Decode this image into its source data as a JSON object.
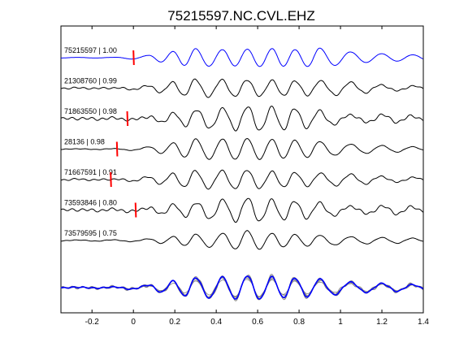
{
  "chart_data": {
    "type": "line",
    "title": "75215597.NC.CVL.EHZ",
    "xlabel": "",
    "ylabel": "",
    "xlim": [
      -0.35,
      1.4
    ],
    "x_ticks": [
      -0.2,
      0,
      0.2,
      0.4,
      0.6,
      0.8,
      1,
      1.2,
      1.4
    ],
    "x_tick_labels": [
      "-0.2",
      "0",
      "0.2",
      "0.4",
      "0.6",
      "0.8",
      "1",
      "1.2",
      "1.4"
    ],
    "grid": false,
    "series": [
      {
        "name": "75215597 | 1.00",
        "label": "75215597 | 1.00",
        "color": "#0000ff",
        "pick_time": 0.0,
        "peak_times": [
          -0.1,
          0.07,
          0.19,
          0.3,
          0.43,
          0.55,
          0.67,
          0.78,
          0.9,
          1.05,
          1.2,
          1.35
        ],
        "peak_amplitudes": [
          0.03,
          0.2,
          0.55,
          0.8,
          0.7,
          0.75,
          0.8,
          0.7,
          0.85,
          0.5,
          0.35,
          0.25
        ]
      },
      {
        "name": "21308760 | 0.99",
        "label": "21308760 | 0.99",
        "color": "#000000",
        "pick_time": null,
        "peak_times": [
          -0.1,
          0.07,
          0.19,
          0.3,
          0.43,
          0.55,
          0.67,
          0.78,
          0.9,
          1.05,
          1.2,
          1.35
        ],
        "peak_amplitudes": [
          0.02,
          0.18,
          0.5,
          0.75,
          0.8,
          0.82,
          0.78,
          0.72,
          0.7,
          0.45,
          0.3,
          0.2
        ]
      },
      {
        "name": "71863550 | 0.98",
        "label": "71863550 | 0.98",
        "color": "#000000",
        "pick_time": -0.03,
        "peak_times": [
          -0.1,
          0.07,
          0.19,
          0.3,
          0.43,
          0.55,
          0.67,
          0.78,
          0.9,
          1.05,
          1.2,
          1.35
        ],
        "peak_amplitudes": [
          0.03,
          0.2,
          0.55,
          0.85,
          0.8,
          0.9,
          0.85,
          0.75,
          0.6,
          0.4,
          0.3,
          0.2
        ]
      },
      {
        "name": "28136 | 0.98",
        "label": "28136 | 0.98",
        "color": "#000000",
        "pick_time": -0.08,
        "peak_times": [
          -0.1,
          0.07,
          0.19,
          0.3,
          0.43,
          0.55,
          0.67,
          0.78,
          0.9,
          1.05,
          1.2,
          1.35
        ],
        "peak_amplitudes": [
          0.03,
          0.2,
          0.55,
          0.9,
          0.85,
          0.9,
          0.82,
          0.75,
          0.65,
          0.45,
          0.3,
          0.2
        ]
      },
      {
        "name": "71667591 | 0.91",
        "label": "71667591 | 0.91",
        "color": "#000000",
        "pick_time": -0.11,
        "peak_times": [
          -0.1,
          0.07,
          0.19,
          0.3,
          0.43,
          0.55,
          0.67,
          0.78,
          0.9,
          1.05,
          1.2,
          1.35
        ],
        "peak_amplitudes": [
          0.03,
          0.2,
          0.5,
          0.75,
          0.85,
          0.95,
          0.8,
          0.7,
          0.6,
          0.4,
          0.3,
          0.2
        ]
      },
      {
        "name": "73593846 | 0.80",
        "label": "73593846 | 0.80",
        "color": "#000000",
        "pick_time": 0.01,
        "peak_times": [
          -0.1,
          0.07,
          0.19,
          0.3,
          0.43,
          0.55,
          0.67,
          0.78,
          0.9,
          1.05,
          1.2,
          1.35
        ],
        "peak_amplitudes": [
          0.04,
          0.25,
          0.55,
          0.7,
          0.8,
          0.9,
          0.75,
          0.65,
          0.55,
          0.4,
          0.3,
          0.25
        ]
      },
      {
        "name": "73579595 | 0.75",
        "label": "73579595 | 0.75",
        "color": "#000000",
        "pick_time": null,
        "peak_times": [
          -0.1,
          0.07,
          0.19,
          0.3,
          0.43,
          0.55,
          0.67,
          0.78,
          0.9,
          1.05,
          1.2,
          1.35
        ],
        "peak_amplitudes": [
          0.05,
          0.15,
          0.35,
          0.55,
          0.6,
          0.85,
          0.6,
          0.5,
          0.45,
          0.35,
          0.25,
          0.2
        ]
      }
    ],
    "stack": {
      "label": "",
      "color": "#0000ff",
      "overlay_color": "#808080"
    },
    "pick_marker_color": "#ff0000"
  }
}
